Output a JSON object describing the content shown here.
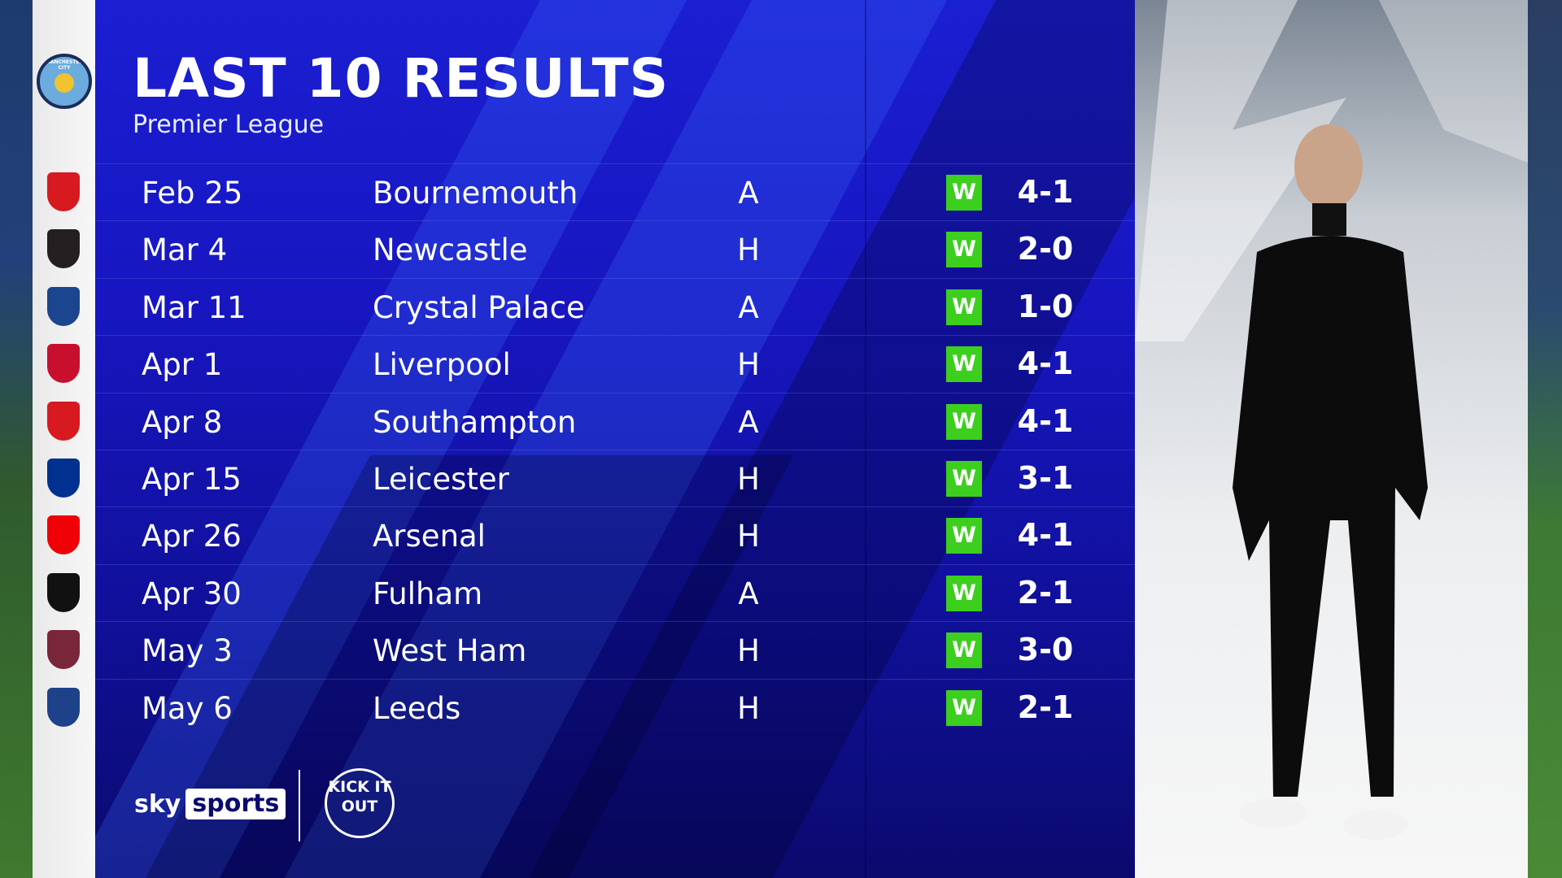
{
  "header": {
    "title": "LAST 10 RESULTS",
    "subtitle": "Premier League"
  },
  "club": {
    "name": "Manchester City",
    "crest_icon": "man-city-crest"
  },
  "colors": {
    "panel": "#1716c0",
    "win": "#3ccf1e",
    "text": "#ffffff"
  },
  "results": [
    {
      "date": "Feb 25",
      "opponent": "Bournemouth",
      "venue": "A",
      "result": "W",
      "score": "4-1",
      "badge_color": "#d71920"
    },
    {
      "date": "Mar 4",
      "opponent": "Newcastle",
      "venue": "H",
      "result": "W",
      "score": "2-0",
      "badge_color": "#241f20"
    },
    {
      "date": "Mar 11",
      "opponent": "Crystal Palace",
      "venue": "A",
      "result": "W",
      "score": "1-0",
      "badge_color": "#1b458f"
    },
    {
      "date": "Apr 1",
      "opponent": "Liverpool",
      "venue": "H",
      "result": "W",
      "score": "4-1",
      "badge_color": "#c8102e"
    },
    {
      "date": "Apr 8",
      "opponent": "Southampton",
      "venue": "A",
      "result": "W",
      "score": "4-1",
      "badge_color": "#d71920"
    },
    {
      "date": "Apr 15",
      "opponent": "Leicester",
      "venue": "H",
      "result": "W",
      "score": "3-1",
      "badge_color": "#003090"
    },
    {
      "date": "Apr 26",
      "opponent": "Arsenal",
      "venue": "H",
      "result": "W",
      "score": "4-1",
      "badge_color": "#ef0107"
    },
    {
      "date": "Apr 30",
      "opponent": "Fulham",
      "venue": "A",
      "result": "W",
      "score": "2-1",
      "badge_color": "#111111"
    },
    {
      "date": "May 3",
      "opponent": "West Ham",
      "venue": "H",
      "result": "W",
      "score": "3-0",
      "badge_color": "#7a263a"
    },
    {
      "date": "May 6",
      "opponent": "Leeds",
      "venue": "H",
      "result": "W",
      "score": "2-1",
      "badge_color": "#1d428a"
    }
  ],
  "footer": {
    "sky_a": "sky",
    "sky_b": "sports",
    "kick_it_out": "KICK IT OUT"
  }
}
